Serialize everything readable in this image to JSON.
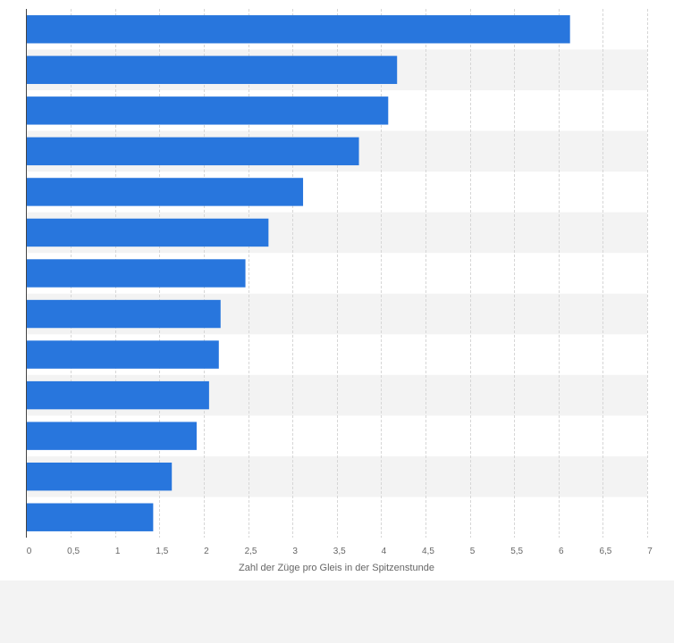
{
  "chart_data": {
    "type": "bar",
    "orientation": "horizontal",
    "categories": [
      "",
      "",
      "",
      "",
      "",
      "",
      "",
      "",
      "",
      "",
      "",
      "",
      ""
    ],
    "values": [
      6.13,
      4.18,
      4.08,
      3.75,
      3.12,
      2.73,
      2.47,
      2.19,
      2.17,
      2.06,
      1.92,
      1.64,
      1.43
    ],
    "title": "",
    "xlabel": "Zahl der Züge pro Gleis in der Spitzenstunde",
    "ylabel": "",
    "xlim": [
      0,
      7
    ],
    "x_ticks": [
      "0",
      "0,5",
      "1",
      "1,5",
      "2",
      "2,5",
      "3",
      "3,5",
      "4",
      "4,5",
      "5",
      "5,5",
      "6",
      "6,5",
      "7"
    ],
    "grid": true,
    "legend": "none",
    "bar_color": "#2876dd",
    "band_color": "#f3f3f3"
  }
}
